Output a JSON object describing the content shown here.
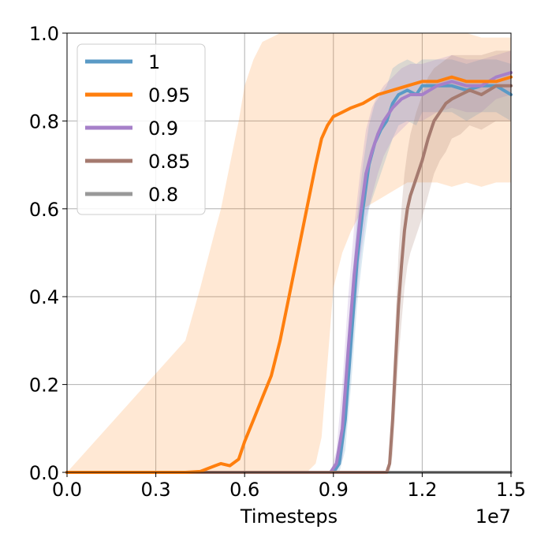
{
  "chart_data": {
    "type": "line",
    "xlabel": "Timesteps",
    "ylabel": "",
    "x_multiplier": "1e7",
    "xlim": [
      0.0,
      1.5
    ],
    "ylim": [
      0.0,
      1.0
    ],
    "xticks": [
      "0.0",
      "0.3",
      "0.6",
      "0.9",
      "1.2",
      "1.5"
    ],
    "yticks": [
      "0.0",
      "0.2",
      "0.4",
      "0.6",
      "0.8",
      "1.0"
    ],
    "grid": true,
    "legend_position": "top-left",
    "series": [
      {
        "name": "1",
        "color": "#5a9ac6",
        "x": [
          0,
          0.88,
          0.9,
          0.92,
          0.94,
          0.96,
          0.98,
          1.0,
          1.02,
          1.04,
          1.06,
          1.08,
          1.1,
          1.12,
          1.15,
          1.18,
          1.2,
          1.25,
          1.3,
          1.35,
          1.4,
          1.45,
          1.5
        ],
        "y": [
          0,
          0,
          0.0,
          0.02,
          0.12,
          0.3,
          0.48,
          0.6,
          0.7,
          0.75,
          0.78,
          0.8,
          0.84,
          0.86,
          0.87,
          0.86,
          0.88,
          0.88,
          0.88,
          0.87,
          0.88,
          0.88,
          0.86
        ],
        "band_upper": [
          0,
          0,
          0.01,
          0.05,
          0.2,
          0.4,
          0.58,
          0.7,
          0.79,
          0.84,
          0.86,
          0.88,
          0.92,
          0.93,
          0.94,
          0.93,
          0.94,
          0.94,
          0.94,
          0.93,
          0.94,
          0.94,
          0.93
        ],
        "band_lower": [
          0,
          0,
          0,
          0,
          0.05,
          0.2,
          0.38,
          0.5,
          0.6,
          0.64,
          0.68,
          0.72,
          0.76,
          0.79,
          0.8,
          0.79,
          0.82,
          0.82,
          0.82,
          0.8,
          0.82,
          0.82,
          0.8
        ]
      },
      {
        "name": "0.95",
        "color": "#ff7f0e",
        "x": [
          0,
          0.4,
          0.45,
          0.5,
          0.52,
          0.55,
          0.58,
          0.6,
          0.63,
          0.66,
          0.69,
          0.72,
          0.75,
          0.78,
          0.81,
          0.84,
          0.86,
          0.88,
          0.9,
          0.93,
          0.96,
          1.0,
          1.05,
          1.1,
          1.15,
          1.2,
          1.25,
          1.3,
          1.35,
          1.4,
          1.45,
          1.5
        ],
        "y": [
          0,
          0,
          0.002,
          0.015,
          0.02,
          0.015,
          0.03,
          0.07,
          0.12,
          0.17,
          0.22,
          0.3,
          0.4,
          0.5,
          0.6,
          0.7,
          0.76,
          0.79,
          0.81,
          0.82,
          0.83,
          0.84,
          0.86,
          0.87,
          0.88,
          0.89,
          0.89,
          0.9,
          0.89,
          0.89,
          0.89,
          0.9
        ],
        "band_upper": [
          0,
          0.3,
          0.42,
          0.55,
          0.6,
          0.7,
          0.8,
          0.88,
          0.94,
          0.98,
          0.99,
          1.0,
          1.0,
          1.0,
          1.0,
          1.0,
          1.0,
          1.0,
          1.0,
          1.0,
          1.0,
          1.0,
          1.0,
          1.0,
          1.0,
          1.0,
          1.0,
          1.0,
          1.0,
          0.99,
          0.99,
          0.99
        ],
        "band_lower": [
          0,
          0,
          0,
          0,
          0,
          0,
          0,
          0,
          0,
          0,
          0,
          0,
          0,
          0,
          0,
          0.02,
          0.08,
          0.25,
          0.42,
          0.5,
          0.55,
          0.6,
          0.62,
          0.64,
          0.66,
          0.66,
          0.66,
          0.65,
          0.66,
          0.65,
          0.66,
          0.66
        ]
      },
      {
        "name": "0.9",
        "color": "#a680c9",
        "x": [
          0,
          0.89,
          0.91,
          0.93,
          0.95,
          0.97,
          0.99,
          1.01,
          1.03,
          1.05,
          1.07,
          1.1,
          1.13,
          1.16,
          1.2,
          1.25,
          1.3,
          1.35,
          1.4,
          1.45,
          1.5
        ],
        "y": [
          0,
          0,
          0.02,
          0.1,
          0.28,
          0.45,
          0.58,
          0.68,
          0.73,
          0.77,
          0.8,
          0.83,
          0.85,
          0.86,
          0.86,
          0.88,
          0.89,
          0.88,
          0.88,
          0.9,
          0.91
        ],
        "band_upper": [
          0,
          0,
          0.05,
          0.2,
          0.4,
          0.56,
          0.68,
          0.78,
          0.83,
          0.86,
          0.88,
          0.9,
          0.92,
          0.93,
          0.93,
          0.94,
          0.95,
          0.94,
          0.94,
          0.95,
          0.96
        ],
        "band_lower": [
          0,
          0,
          0,
          0.03,
          0.16,
          0.34,
          0.48,
          0.58,
          0.63,
          0.68,
          0.72,
          0.76,
          0.78,
          0.8,
          0.8,
          0.82,
          0.83,
          0.82,
          0.82,
          0.85,
          0.86
        ]
      },
      {
        "name": "0.85",
        "color": "#a57a6f",
        "x": [
          0,
          1.08,
          1.09,
          1.1,
          1.11,
          1.12,
          1.13,
          1.14,
          1.15,
          1.16,
          1.18,
          1.2,
          1.22,
          1.24,
          1.26,
          1.28,
          1.3,
          1.33,
          1.36,
          1.4,
          1.45,
          1.5
        ],
        "y": [
          0,
          0,
          0.02,
          0.12,
          0.25,
          0.38,
          0.47,
          0.55,
          0.6,
          0.63,
          0.67,
          0.71,
          0.76,
          0.8,
          0.82,
          0.84,
          0.85,
          0.86,
          0.87,
          0.86,
          0.88,
          0.88
        ],
        "band_upper": [
          0,
          0,
          0.05,
          0.2,
          0.35,
          0.5,
          0.6,
          0.68,
          0.73,
          0.77,
          0.82,
          0.86,
          0.9,
          0.92,
          0.93,
          0.94,
          0.95,
          0.95,
          0.95,
          0.95,
          0.96,
          0.96
        ],
        "band_lower": [
          0,
          0,
          0,
          0.04,
          0.15,
          0.26,
          0.34,
          0.42,
          0.47,
          0.5,
          0.54,
          0.58,
          0.63,
          0.68,
          0.71,
          0.73,
          0.76,
          0.77,
          0.79,
          0.78,
          0.8,
          0.8
        ]
      },
      {
        "name": "0.8",
        "color": "#999999",
        "x": [
          0,
          1.5
        ],
        "y": [
          0.0,
          0.0
        ],
        "band_upper": [
          0.0,
          0.0
        ],
        "band_lower": [
          0.0,
          0.0
        ]
      }
    ]
  }
}
